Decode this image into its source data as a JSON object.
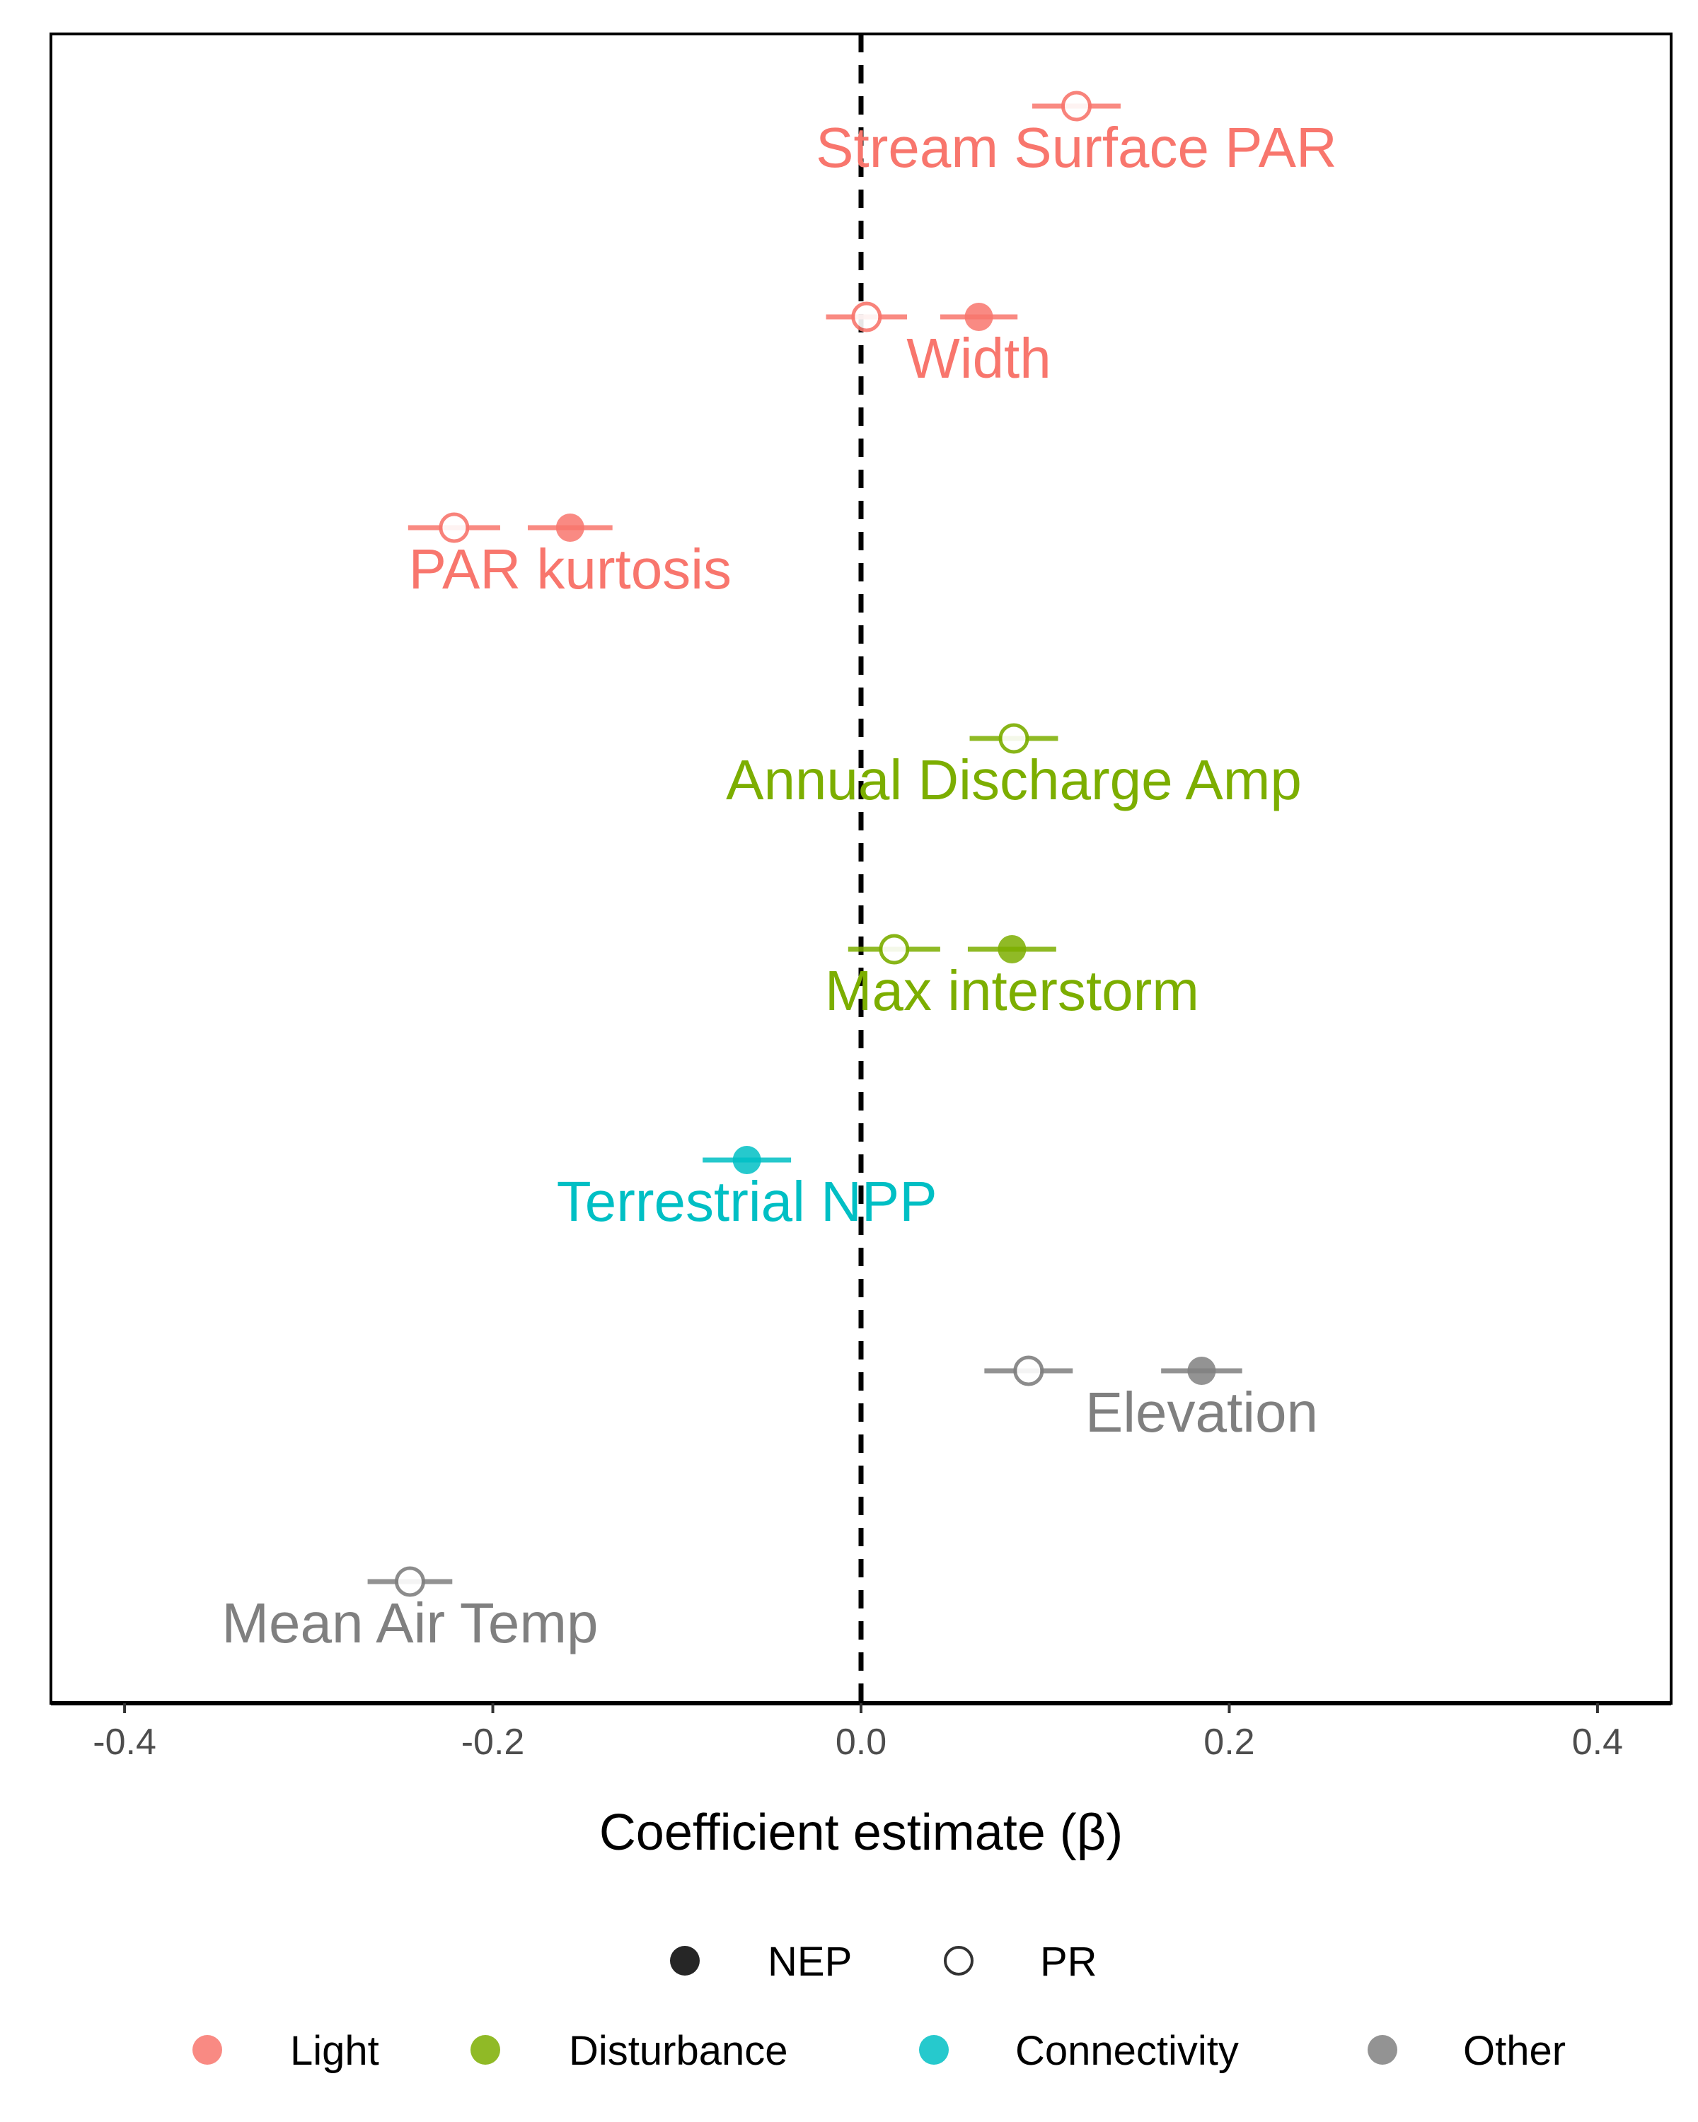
{
  "chart_data": {
    "type": "scatter",
    "xlabel": "Coefficient estimate (β)",
    "ylabel": "",
    "xlim": [
      -0.44,
      0.44
    ],
    "x_ticks": [
      -0.4,
      -0.2,
      0.0,
      0.2,
      0.4
    ],
    "x_tick_labels": [
      "-0.4",
      "-0.2",
      "0.0",
      "0.2",
      "0.4"
    ],
    "reference_line": {
      "x": 0,
      "style": "dashed"
    },
    "grid": false,
    "legend_position": "bottom",
    "group_colors": {
      "Light": "#F8766D",
      "Disturbance": "#7CAE00",
      "Connectivity": "#00BFC4",
      "Other": "#808080"
    },
    "response_legend": [
      {
        "name": "NEP",
        "marker": "filled"
      },
      {
        "name": "PR",
        "marker": "open"
      }
    ],
    "group_legend": [
      "Light",
      "Disturbance",
      "Connectivity",
      "Other"
    ],
    "variables": [
      {
        "label": "Stream Surface PAR",
        "group": "Light",
        "estimates": [
          {
            "response": "PR",
            "beta": 0.117,
            "lower": 0.093,
            "upper": 0.141
          }
        ]
      },
      {
        "label": "Width",
        "group": "Light",
        "estimates": [
          {
            "response": "PR",
            "beta": 0.003,
            "lower": -0.019,
            "upper": 0.025
          },
          {
            "response": "NEP",
            "beta": 0.064,
            "lower": 0.043,
            "upper": 0.085
          }
        ]
      },
      {
        "label": "PAR kurtosis",
        "group": "Light",
        "estimates": [
          {
            "response": "PR",
            "beta": -0.221,
            "lower": -0.246,
            "upper": -0.196
          },
          {
            "response": "NEP",
            "beta": -0.158,
            "lower": -0.181,
            "upper": -0.135
          }
        ]
      },
      {
        "label": "Annual Discharge Amp",
        "group": "Disturbance",
        "estimates": [
          {
            "response": "PR",
            "beta": 0.083,
            "lower": 0.059,
            "upper": 0.107
          }
        ]
      },
      {
        "label": "Max interstorm",
        "group": "Disturbance",
        "estimates": [
          {
            "response": "PR",
            "beta": 0.018,
            "lower": -0.007,
            "upper": 0.043
          },
          {
            "response": "NEP",
            "beta": 0.082,
            "lower": 0.058,
            "upper": 0.106
          }
        ]
      },
      {
        "label": "Terrestrial NPP",
        "group": "Connectivity",
        "estimates": [
          {
            "response": "NEP",
            "beta": -0.062,
            "lower": -0.086,
            "upper": -0.038
          }
        ]
      },
      {
        "label": "Elevation",
        "group": "Other",
        "estimates": [
          {
            "response": "PR",
            "beta": 0.091,
            "lower": 0.067,
            "upper": 0.115
          },
          {
            "response": "NEP",
            "beta": 0.185,
            "lower": 0.163,
            "upper": 0.207
          }
        ]
      },
      {
        "label": "Mean Air Temp",
        "group": "Other",
        "estimates": [
          {
            "response": "PR",
            "beta": -0.245,
            "lower": -0.268,
            "upper": -0.222
          }
        ]
      }
    ]
  }
}
